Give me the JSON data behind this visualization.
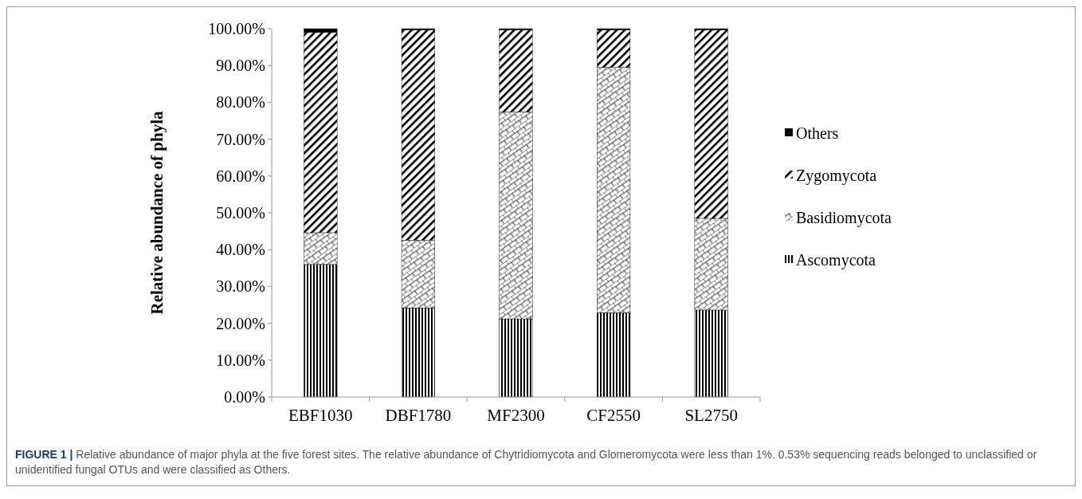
{
  "chart_data": {
    "type": "bar",
    "stacked": true,
    "title": "FIGURE 1 |",
    "ylabel": "Relative abundance of phyla",
    "categories": [
      "EBF1030",
      "DBF1780",
      "MF2300",
      "CF2550",
      "SL2750"
    ],
    "series": [
      {
        "name": "Ascomycota",
        "color": "#000000",
        "values": [
          36.0,
          24.2,
          21.2,
          22.9,
          23.6
        ]
      },
      {
        "name": "Basidiomycota",
        "color": "#000000",
        "values": [
          8.6,
          18.4,
          56.2,
          66.6,
          24.9
        ]
      },
      {
        "name": "Zygomycota",
        "color": "#000000",
        "values": [
          54.4,
          57.1,
          22.3,
          10.2,
          51.2
        ]
      },
      {
        "name": "Others",
        "color": "#000000",
        "values": [
          1.0,
          0.3,
          0.3,
          0.3,
          0.3
        ]
      }
    ],
    "ylim": [
      0,
      100
    ],
    "yticks": [
      {
        "value": 0,
        "label": "0.00%"
      },
      {
        "value": 10,
        "label": "10.00%"
      },
      {
        "value": 20,
        "label": "20.00%"
      },
      {
        "value": 30,
        "label": "30.00%"
      },
      {
        "value": 40,
        "label": "40.00%"
      },
      {
        "value": 50,
        "label": "50.00%"
      },
      {
        "value": 60,
        "label": "60.00%"
      },
      {
        "value": 70,
        "label": "70.00%"
      },
      {
        "value": 80,
        "label": "80.00%"
      },
      {
        "value": 90,
        "label": "90.00%"
      },
      {
        "value": 100,
        "label": "100.00%"
      }
    ],
    "grid": false,
    "legend": "right",
    "annotations": [
      "Relative abundance of major phyla at the five forest sites. The relative abundance of Chytridiomycota and Glomeromycota were less than 1%. 0.53% sequencing reads belonged to unclassified or unidentified fungal OTUs and were classified as Others."
    ]
  }
}
